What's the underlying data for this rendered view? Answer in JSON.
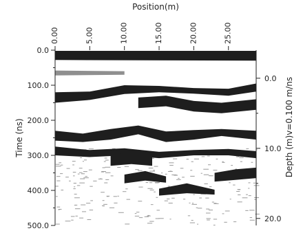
{
  "chart_data": {
    "type": "heatmap",
    "title": "",
    "top_axis": {
      "label": "Position(m)",
      "ticks": [
        0,
        5,
        10,
        15,
        20,
        25
      ],
      "tick_labels": [
        "0.00",
        "5.00",
        "10.00",
        "15.00",
        "20.00",
        "25.00"
      ],
      "range": [
        0,
        29
      ]
    },
    "left_axis": {
      "label": "Time (ns)",
      "ticks": [
        0,
        100,
        200,
        300,
        400,
        500
      ],
      "tick_labels": [
        "0.0",
        "100.0",
        "200.0",
        "300.0",
        "400.0",
        "500.0"
      ],
      "range": [
        0,
        500
      ],
      "direction": "down"
    },
    "right_axis": {
      "label": "Depth (m)v=0.100 m/ns",
      "ticks": [
        0,
        10,
        20
      ],
      "tick_labels": [
        "0.0",
        "10.0",
        "20.0"
      ],
      "time_at_zero_depth_ns": 80,
      "direction": "down"
    },
    "colormap": "grayscale",
    "reflector_bands": [
      {
        "name": "surface",
        "x": [
          0,
          29
        ],
        "t_top": [
          2,
          2
        ],
        "t_bottom": [
          28,
          30
        ],
        "tone": "dark"
      },
      {
        "name": "reflector-1",
        "x": [
          0,
          5,
          10,
          15,
          20,
          25,
          29
        ],
        "t_top": [
          120,
          118,
          100,
          102,
          108,
          110,
          95
        ],
        "t_bottom": [
          150,
          142,
          125,
          120,
          124,
          130,
          118
        ],
        "tone": "dark"
      },
      {
        "name": "reflector-2",
        "x": [
          12,
          16,
          20,
          24,
          29
        ],
        "t_top": [
          135,
          130,
          145,
          150,
          140
        ],
        "t_bottom": [
          165,
          160,
          175,
          180,
          170
        ],
        "tone": "dark"
      },
      {
        "name": "reflector-3",
        "x": [
          0,
          4,
          8,
          12,
          16,
          20,
          24,
          29
        ],
        "t_top": [
          230,
          238,
          225,
          215,
          232,
          228,
          225,
          230
        ],
        "t_bottom": [
          258,
          262,
          255,
          240,
          262,
          255,
          245,
          255
        ],
        "tone": "dark"
      },
      {
        "name": "reflector-4",
        "x": [
          0,
          5,
          10,
          15,
          20,
          25,
          29
        ],
        "t_top": [
          275,
          285,
          280,
          290,
          285,
          282,
          288
        ],
        "t_bottom": [
          300,
          305,
          300,
          308,
          300,
          300,
          308
        ],
        "tone": "dark"
      },
      {
        "name": "reflector-5",
        "x": [
          8,
          11,
          14
        ],
        "t_top": [
          300,
          290,
          300
        ],
        "t_bottom": [
          330,
          325,
          330
        ],
        "tone": "dark"
      },
      {
        "name": "reflector-6",
        "x": [
          10,
          13,
          16
        ],
        "t_top": [
          355,
          345,
          360
        ],
        "t_bottom": [
          380,
          372,
          378
        ],
        "tone": "dark"
      },
      {
        "name": "reflector-7",
        "x": [
          15,
          19,
          23
        ],
        "t_top": [
          395,
          380,
          398
        ],
        "t_bottom": [
          415,
          408,
          412
        ],
        "tone": "dark"
      },
      {
        "name": "reflector-8",
        "x": [
          23,
          26,
          29
        ],
        "t_top": [
          350,
          340,
          335
        ],
        "t_bottom": [
          375,
          370,
          365
        ],
        "tone": "dark"
      },
      {
        "name": "gray-band",
        "x": [
          0,
          10
        ],
        "t_top": [
          58,
          60
        ],
        "t_bottom": [
          72,
          70
        ],
        "tone": "gray"
      }
    ]
  }
}
